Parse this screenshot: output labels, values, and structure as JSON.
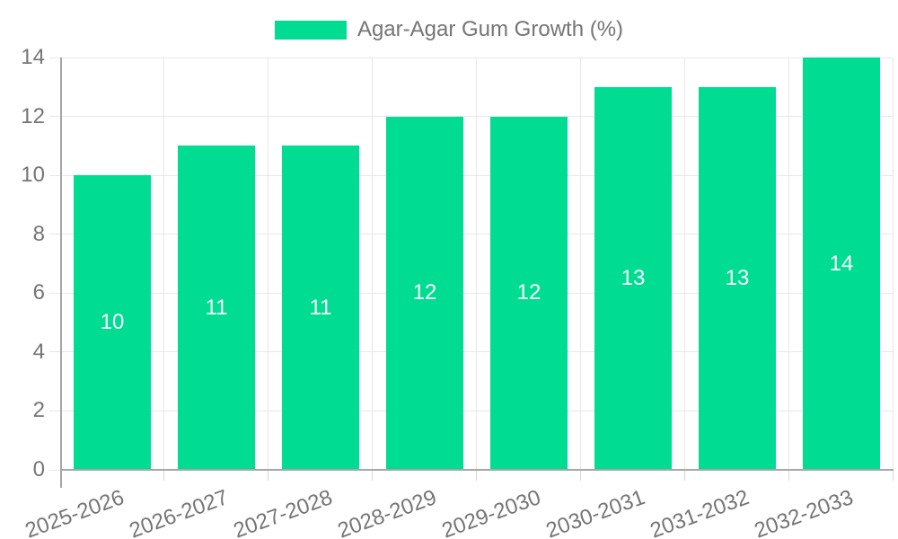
{
  "legend": {
    "label": "Agar-Agar Gum Growth (%)"
  },
  "chart_data": {
    "type": "bar",
    "title": "Agar-Agar Gum Growth (%)",
    "categories": [
      "2025-2026",
      "2026-2027",
      "2027-2028",
      "2028-2029",
      "2029-2030",
      "2030-2031",
      "2031-2032",
      "2032-2033"
    ],
    "values": [
      10,
      11,
      11,
      12,
      12,
      13,
      13,
      14
    ],
    "xlabel": "",
    "ylabel": "",
    "ylim": [
      0,
      14
    ],
    "yticks": [
      0,
      2,
      4,
      6,
      8,
      10,
      12,
      14
    ],
    "grid": true,
    "legend_position": "top",
    "bar_color": "#00dc92",
    "value_label_color": "#ffffff",
    "axis_text_color": "#757575",
    "grid_color": "#e8e8e8",
    "axis_line_color": "#a6a6a6"
  }
}
